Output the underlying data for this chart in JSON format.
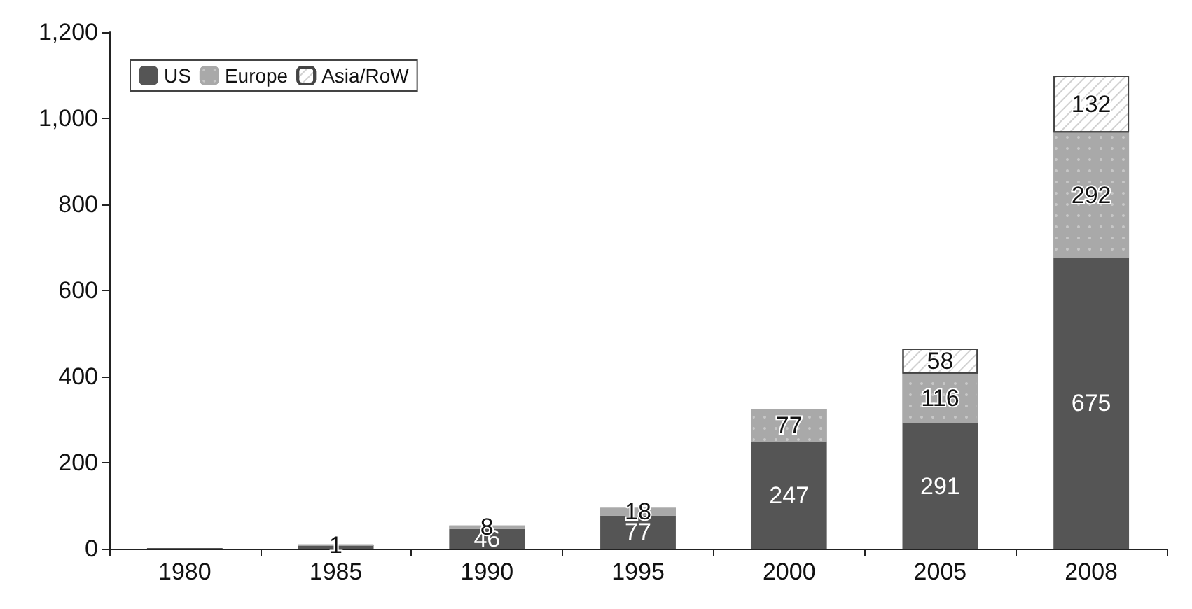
{
  "chart_data": {
    "type": "bar",
    "stacked": true,
    "categories": [
      "1980",
      "1985",
      "1990",
      "1995",
      "2000",
      "2005",
      "2008"
    ],
    "series": [
      {
        "name": "US",
        "color": "#555555",
        "values": [
          0,
          8,
          46,
          77,
          247,
          291,
          675
        ],
        "value_labels": [
          null,
          null,
          "46",
          "77",
          "247",
          "291",
          "675"
        ]
      },
      {
        "name": "Europe",
        "color": "#a9a9a9",
        "values": [
          null,
          1,
          8,
          18,
          77,
          116,
          292
        ],
        "value_labels": [
          null,
          "1",
          "8",
          "18",
          "77",
          "116",
          "292"
        ]
      },
      {
        "name": "Asia/RoW",
        "color": "#ffffff",
        "values": [
          null,
          null,
          null,
          null,
          null,
          58,
          132
        ],
        "value_labels": [
          null,
          null,
          null,
          null,
          null,
          "58",
          "132"
        ]
      }
    ],
    "ylim": [
      0,
      1200
    ],
    "yticks": [
      0,
      200,
      400,
      600,
      800,
      {
        "value": 1000,
        "label": "1,000"
      },
      {
        "value": 1200,
        "label": "1,200"
      }
    ],
    "grid": false,
    "legend": "top left"
  }
}
